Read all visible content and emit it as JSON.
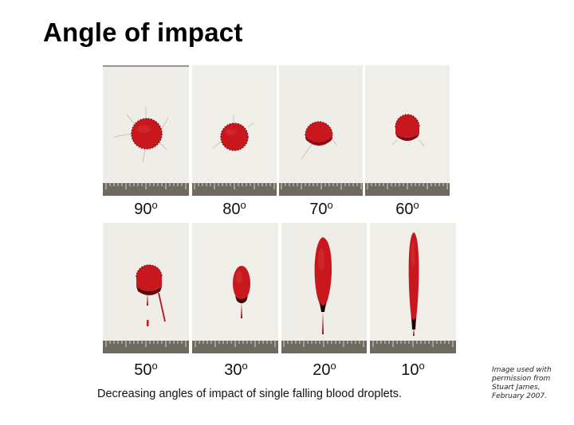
{
  "title": "Angle of impact",
  "caption": "Decreasing angles of impact of single falling blood droplets.",
  "credit": [
    "Image used with",
    "permission from",
    "Stuart James,",
    "February 2007."
  ],
  "degree_symbol": "o",
  "panels": [
    {
      "angle": "90",
      "shape": "circle"
    },
    {
      "angle": "80",
      "shape": "circle-small"
    },
    {
      "angle": "70",
      "shape": "circle-flat"
    },
    {
      "angle": "60",
      "shape": "dome"
    },
    {
      "angle": "50",
      "shape": "dome-drips"
    },
    {
      "angle": "30",
      "shape": "oval"
    },
    {
      "angle": "20",
      "shape": "ellipse"
    },
    {
      "angle": "10",
      "shape": "long-ellipse"
    }
  ],
  "colors": {
    "blood": "#c8181e",
    "blood_dark": "#8a0d12",
    "paper": "#ecebe6",
    "ruler": "#6e6a60"
  }
}
